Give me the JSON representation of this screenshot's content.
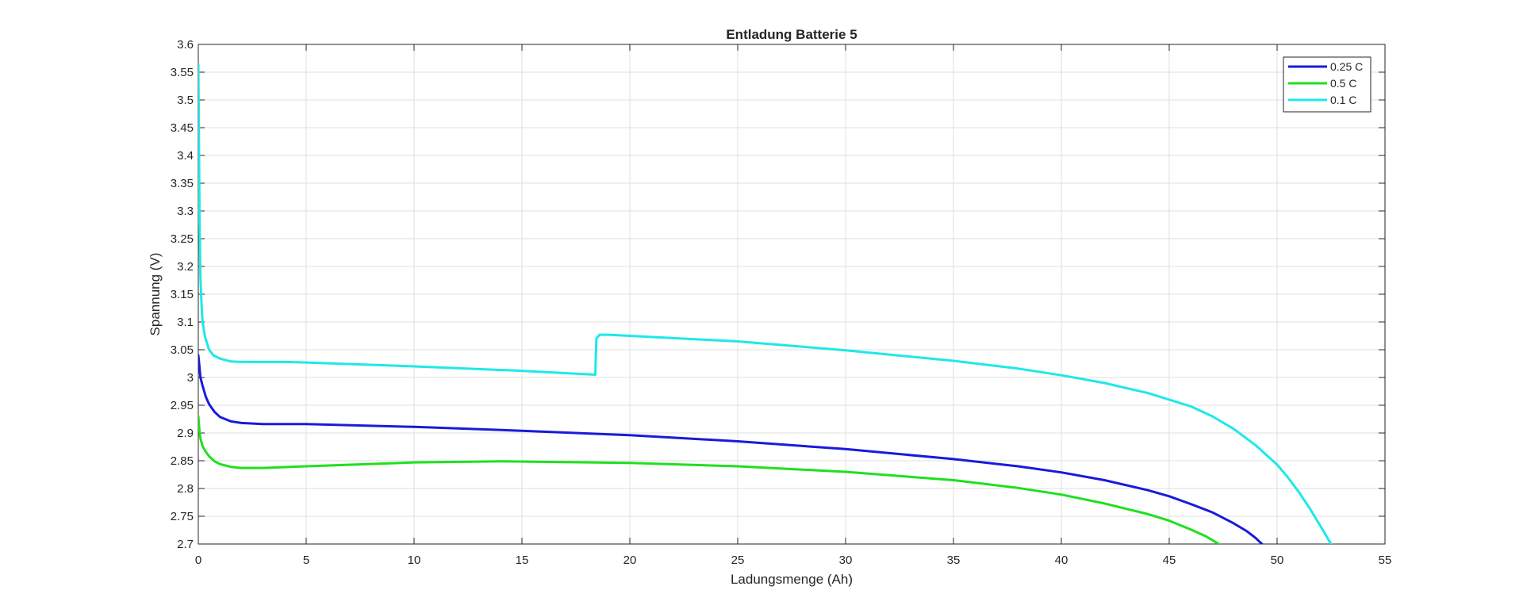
{
  "chart_data": {
    "type": "line",
    "title": "Entladung Batterie 5",
    "xlabel": "Ladungsmenge (Ah)",
    "ylabel": "Spannung (V)",
    "xlim": [
      0,
      55
    ],
    "ylim": [
      2.7,
      3.6
    ],
    "xticks": [
      0,
      5,
      10,
      15,
      20,
      25,
      30,
      35,
      40,
      45,
      50,
      55
    ],
    "xtick_labels": [
      "0",
      "5",
      "10",
      "15",
      "20",
      "25",
      "30",
      "35",
      "40",
      "45",
      "50",
      "55"
    ],
    "yticks": [
      2.7,
      2.75,
      2.8,
      2.85,
      2.9,
      2.95,
      3.0,
      3.05,
      3.1,
      3.15,
      3.2,
      3.25,
      3.3,
      3.35,
      3.4,
      3.45,
      3.5,
      3.55,
      3.6
    ],
    "ytick_labels": [
      "2.7",
      "2.75",
      "2.8",
      "2.85",
      "2.9",
      "2.95",
      "3",
      "3.05",
      "3.1",
      "3.15",
      "3.2",
      "3.25",
      "3.3",
      "3.35",
      "3.4",
      "3.45",
      "3.5",
      "3.55",
      "3.6"
    ],
    "grid": true,
    "legend_position": "top-right",
    "series": [
      {
        "name": "0.25 C",
        "color": "#1a1adb",
        "x": [
          0,
          0.05,
          0.1,
          0.2,
          0.35,
          0.5,
          0.75,
          1,
          1.5,
          2,
          3,
          5,
          10,
          15,
          20,
          25,
          30,
          35,
          38,
          40,
          42,
          44,
          45,
          46,
          47,
          48,
          48.6,
          49.0,
          49.3
        ],
        "y": [
          3.04,
          3.02,
          3.0,
          2.985,
          2.965,
          2.952,
          2.938,
          2.929,
          2.921,
          2.918,
          2.916,
          2.916,
          2.911,
          2.904,
          2.896,
          2.885,
          2.871,
          2.853,
          2.84,
          2.829,
          2.815,
          2.797,
          2.786,
          2.772,
          2.757,
          2.737,
          2.723,
          2.711,
          2.7
        ]
      },
      {
        "name": "0.5 C",
        "color": "#1fe01f",
        "x": [
          0,
          0.05,
          0.1,
          0.2,
          0.35,
          0.5,
          0.75,
          1,
          1.5,
          2,
          3,
          5,
          10,
          14,
          20,
          25,
          30,
          35,
          38,
          40,
          42,
          44,
          45,
          46,
          46.7,
          47.3
        ],
        "y": [
          2.93,
          2.905,
          2.89,
          2.876,
          2.866,
          2.858,
          2.849,
          2.844,
          2.839,
          2.837,
          2.837,
          2.84,
          2.847,
          2.849,
          2.846,
          2.84,
          2.83,
          2.815,
          2.801,
          2.789,
          2.773,
          2.754,
          2.742,
          2.726,
          2.714,
          2.7
        ]
      },
      {
        "name": "0.1 C",
        "color": "#1fe8e8",
        "x": [
          0,
          0.03,
          0.06,
          0.1,
          0.15,
          0.2,
          0.3,
          0.4,
          0.5,
          0.7,
          1,
          1.5,
          2,
          3,
          4,
          5,
          10,
          15,
          18.4,
          18.45,
          18.6,
          19,
          20,
          25,
          30,
          35,
          38,
          40,
          42,
          44,
          46,
          47,
          48,
          49,
          50,
          50.5,
          51,
          51.5,
          52,
          52.5
        ],
        "y": [
          3.565,
          3.43,
          3.28,
          3.18,
          3.13,
          3.1,
          3.075,
          3.062,
          3.05,
          3.04,
          3.034,
          3.029,
          3.028,
          3.028,
          3.028,
          3.027,
          3.02,
          3.012,
          3.005,
          3.07,
          3.077,
          3.077,
          3.075,
          3.065,
          3.049,
          3.03,
          3.016,
          3.004,
          2.99,
          2.972,
          2.948,
          2.93,
          2.907,
          2.878,
          2.843,
          2.82,
          2.794,
          2.765,
          2.733,
          2.7
        ]
      }
    ]
  }
}
